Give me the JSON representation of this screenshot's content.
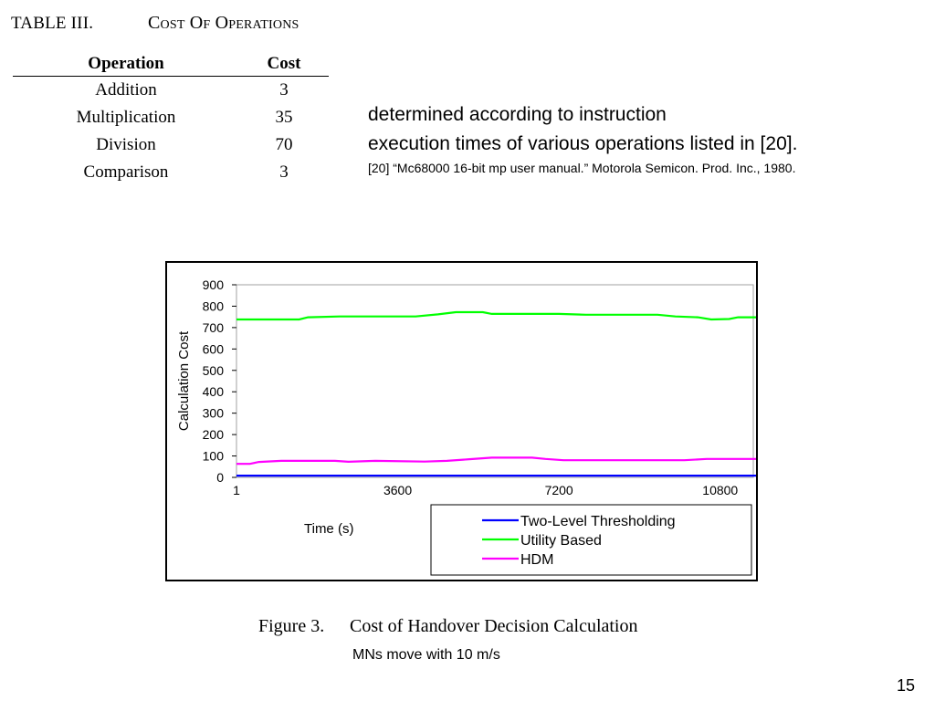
{
  "table": {
    "label": "TABLE III.",
    "title": "Cost Of Operations",
    "headers": [
      "Operation",
      "Cost"
    ],
    "rows": [
      {
        "operation": "Addition",
        "cost": "3"
      },
      {
        "operation": "Multiplication",
        "cost": "35"
      },
      {
        "operation": "Division",
        "cost": "70"
      },
      {
        "operation": "Comparison",
        "cost": "3"
      }
    ]
  },
  "text": {
    "line1": "determined according to instruction",
    "line2": "execution times of various operations listed in [20].",
    "reference": "[20]  “Mc68000 16-bit mp user manual.” Motorola Semicon. Prod. Inc., 1980."
  },
  "chart_data": {
    "type": "line",
    "xlabel": "Time (s)",
    "ylabel": "Calculation Cost",
    "xlim": [
      1,
      11600
    ],
    "ylim": [
      0,
      900
    ],
    "x_ticks": [
      1,
      3600,
      7200,
      10800
    ],
    "y_ticks": [
      0,
      100,
      200,
      300,
      400,
      500,
      600,
      700,
      800,
      900
    ],
    "grid": false,
    "legend_position": "bottom-right",
    "series": [
      {
        "name": "Two-Level Thresholding",
        "color": "#0000ff",
        "points": [
          [
            1,
            8
          ],
          [
            11600,
            8
          ]
        ]
      },
      {
        "name": "Utility Based",
        "color": "#00ff00",
        "points": [
          [
            1,
            738
          ],
          [
            1400,
            738
          ],
          [
            1600,
            748
          ],
          [
            2300,
            752
          ],
          [
            4000,
            752
          ],
          [
            4500,
            762
          ],
          [
            4900,
            772
          ],
          [
            5500,
            772
          ],
          [
            5700,
            764
          ],
          [
            7200,
            764
          ],
          [
            7800,
            760
          ],
          [
            9400,
            760
          ],
          [
            9800,
            752
          ],
          [
            10300,
            748
          ],
          [
            10600,
            738
          ],
          [
            11000,
            740
          ],
          [
            11200,
            748
          ],
          [
            11600,
            748
          ]
        ]
      },
      {
        "name": "HDM",
        "color": "#ff00ff",
        "points": [
          [
            1,
            63
          ],
          [
            300,
            63
          ],
          [
            500,
            72
          ],
          [
            1000,
            77
          ],
          [
            2200,
            77
          ],
          [
            2500,
            73
          ],
          [
            3100,
            77
          ],
          [
            4200,
            74
          ],
          [
            4700,
            77
          ],
          [
            5200,
            85
          ],
          [
            5700,
            92
          ],
          [
            6600,
            92
          ],
          [
            6900,
            86
          ],
          [
            7300,
            80
          ],
          [
            10000,
            80
          ],
          [
            10500,
            86
          ],
          [
            11600,
            86
          ]
        ]
      }
    ]
  },
  "caption": {
    "figure_label": "Figure 3.",
    "figure_title": "Cost of Handover Decision Calculation",
    "subtitle": "MNs move with 10 m/s"
  },
  "page_number": "15"
}
